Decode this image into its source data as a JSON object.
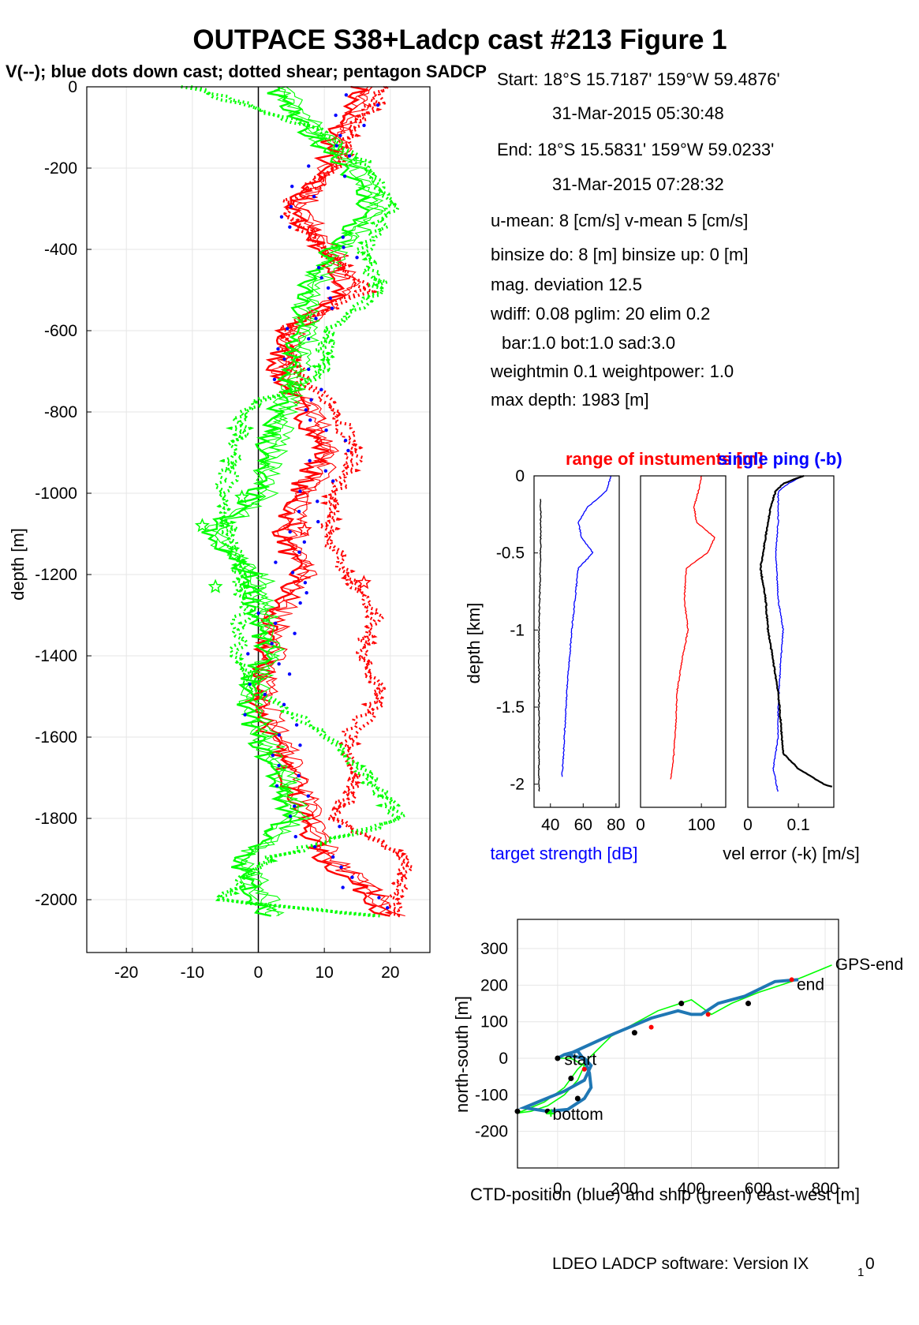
{
  "title": "OUTPACE S38+Ladcp cast #213  Figure 1",
  "subtitle": "V(--); blue dots down cast; dotted shear; pentagon SADCP",
  "info": {
    "start": "Start:  18°S 15.7187'      159°W 59.4876'",
    "start_time": "31-Mar-2015 05:30:48",
    "end": "End:   18°S 15.5831'      159°W 59.0233'",
    "end_time": "31-Mar-2015 07:28:32",
    "means": "u-mean:   8 [cm/s]    v-mean   5 [cm/s]",
    "binsize": "binsize do: 8 [m]  binsize up:  0 [m]",
    "magdev": "mag. deviation 12.5",
    "wdiff": "wdiff: 0.08  pglim: 20  elim 0.2",
    "bar": "bar:1.0 bot:1.0 sad:3.0",
    "weight": "weightmin 0.1  weightpower: 1.0",
    "maxdepth": "max depth: 1983 [m]"
  },
  "footer": "LDEO LADCP software: Version IX",
  "footer_sub": "1",
  "footer_end": "0",
  "colors": {
    "red": "#ff0000",
    "green": "#00ff00",
    "blue": "#0000ff",
    "black": "#000000",
    "grid": "#e6e6e6",
    "cyan_blue": "#1f77b4",
    "yellow": "#ffff00"
  },
  "chart_data": [
    {
      "id": "velocity",
      "type": "line",
      "ylabel": "depth [m]",
      "xlim": [
        -26,
        26
      ],
      "ylim": [
        -2130,
        0
      ],
      "xticks": [
        -20,
        -10,
        0,
        10,
        20
      ],
      "yticks": [
        0,
        -200,
        -400,
        -600,
        -800,
        -1000,
        -1200,
        -1400,
        -1600,
        -1800,
        -2000
      ],
      "series": [
        {
          "color": "#ff0000",
          "style": "solid",
          "z": [
            0,
            -100,
            -200,
            -300,
            -400,
            -500,
            -600,
            -700,
            -800,
            -900,
            -1000,
            -1100,
            -1200,
            -1300,
            -1400,
            -1500,
            -1600,
            -1700,
            -1800,
            -1900,
            -2000,
            -2040
          ],
          "v": [
            17,
            13,
            11,
            6,
            11,
            14,
            5,
            4,
            8,
            11,
            7,
            5,
            7,
            3,
            2,
            1,
            3,
            6,
            8,
            11,
            19,
            20
          ]
        },
        {
          "color": "#ff0000",
          "style": "dotted",
          "z": [
            0,
            -100,
            -200,
            -300,
            -400,
            -500,
            -600,
            -700,
            -800,
            -900,
            -1000,
            -1100,
            -1200,
            -1300,
            -1400,
            -1500,
            -1600,
            -1700,
            -1800,
            -1900,
            -2000,
            -2040
          ],
          "v": [
            20,
            15,
            12,
            4,
            10,
            17,
            4,
            6,
            12,
            15,
            12,
            11,
            14,
            18,
            16,
            19,
            14,
            15,
            12,
            23,
            21,
            21
          ]
        },
        {
          "color": "#00ff00",
          "style": "solid",
          "z": [
            0,
            -100,
            -200,
            -300,
            -400,
            -500,
            -600,
            -700,
            -800,
            -900,
            -1000,
            -1100,
            -1200,
            -1300,
            -1400,
            -1500,
            -1600,
            -1700,
            -1800,
            -1900,
            -2000,
            -2040
          ],
          "v": [
            3,
            8,
            15,
            18,
            12,
            8,
            7,
            6,
            4,
            2,
            1,
            -7,
            0,
            1,
            2,
            -1,
            1,
            4,
            6,
            -2,
            1,
            3
          ]
        },
        {
          "color": "#00ff00",
          "style": "dotted",
          "z": [
            0,
            -100,
            -200,
            -300,
            -400,
            -500,
            -600,
            -700,
            -800,
            -900,
            -1000,
            -1100,
            -1200,
            -1300,
            -1400,
            -1500,
            -1600,
            -1700,
            -1800,
            -1900,
            -2000,
            -2040
          ],
          "v": [
            -10,
            9,
            17,
            21,
            16,
            19,
            11,
            10,
            -2,
            -3,
            -5,
            -4,
            -2,
            -2,
            -3,
            1,
            11,
            17,
            22,
            2,
            -5,
            18
          ]
        }
      ],
      "sadcp_stars": [
        {
          "color": "#00ff00",
          "v": -6.5,
          "z": -1230
        },
        {
          "color": "#00ff00",
          "v": -8.5,
          "z": -1080
        },
        {
          "color": "#00ff00",
          "v": -2.5,
          "z": -1010
        },
        {
          "color": "#ff0000",
          "v": 16,
          "z": -1220
        },
        {
          "color": "#ff0000",
          "v": 7,
          "z": -1090
        }
      ]
    },
    {
      "id": "target_strength",
      "type": "line",
      "title": "range of instuments [m]",
      "ylabel": "depth [km]",
      "xlabel": "target strength [dB]",
      "xlim": [
        30,
        82
      ],
      "ylim": [
        -2.15,
        0
      ],
      "xticks": [
        40,
        60,
        80
      ],
      "yticks": [
        0,
        -0.5,
        -1,
        -1.5,
        -2
      ],
      "series": [
        {
          "color": "#0000ff",
          "z": [
            0,
            -0.1,
            -0.2,
            -0.3,
            -0.4,
            -0.5,
            -0.6,
            -0.8,
            -1,
            -1.4,
            -1.8,
            -1.96
          ],
          "v": [
            77,
            74,
            63,
            57,
            59,
            66,
            57,
            55,
            53,
            50,
            48,
            47
          ]
        },
        {
          "color": "#000000",
          "z": [
            -0.15,
            -0.5,
            -1,
            -1.5,
            -2.0,
            -2.05
          ],
          "v": [
            34,
            34,
            33,
            33,
            33,
            33
          ]
        }
      ]
    },
    {
      "id": "range",
      "type": "line",
      "xlim": [
        0,
        140
      ],
      "ylim": [
        -2.15,
        0
      ],
      "xticks": [
        0,
        100
      ],
      "series": [
        {
          "color": "#ff0000",
          "z": [
            0,
            -0.1,
            -0.2,
            -0.3,
            -0.4,
            -0.5,
            -0.6,
            -0.8,
            -1,
            -1.2,
            -1.4,
            -1.6,
            -1.8,
            -1.97
          ],
          "v": [
            100,
            95,
            88,
            92,
            122,
            110,
            75,
            72,
            78,
            68,
            60,
            58,
            55,
            50
          ]
        }
      ]
    },
    {
      "id": "vel_error",
      "type": "line",
      "title": "single ping (-b)",
      "xlabel": "vel error (-k) [m/s]",
      "xlim": [
        0,
        0.17
      ],
      "ylim": [
        -2.15,
        0
      ],
      "xticks": [
        0,
        0.1
      ],
      "series": [
        {
          "color": "#0000ff",
          "z": [
            0,
            -0.05,
            -0.1,
            -0.3,
            -0.5,
            -0.8,
            -1.0,
            -1.2,
            -1.5,
            -1.7,
            -1.9,
            -2.05
          ],
          "v": [
            0.11,
            0.08,
            0.06,
            0.06,
            0.055,
            0.06,
            0.07,
            0.065,
            0.06,
            0.06,
            0.05,
            0.06
          ]
        },
        {
          "color": "#000000",
          "z": [
            0,
            -0.05,
            -0.1,
            -0.2,
            -0.4,
            -0.6,
            -0.8,
            -1.0,
            -1.2,
            -1.4,
            -1.6,
            -1.8,
            -1.9,
            -2.0,
            -2.02
          ],
          "v": [
            0.11,
            0.07,
            0.055,
            0.045,
            0.035,
            0.025,
            0.035,
            0.04,
            0.05,
            0.06,
            0.065,
            0.07,
            0.1,
            0.15,
            0.17
          ]
        }
      ]
    },
    {
      "id": "position",
      "type": "line",
      "xlabel": "CTD-position (blue) and ship (green) east-west [m]",
      "ylabel": "north-south [m]",
      "xlim": [
        -120,
        840
      ],
      "ylim": [
        -300,
        380
      ],
      "xticks": [
        0,
        200,
        400,
        600,
        800
      ],
      "yticks": [
        300,
        200,
        100,
        0,
        -100,
        -200
      ],
      "ctd": {
        "color": "#1f77b4",
        "x": [
          0,
          20,
          60,
          80,
          95,
          100,
          80,
          30,
          -30,
          -100,
          -60,
          20,
          80,
          100,
          80,
          50,
          30,
          150,
          280,
          360,
          400,
          430,
          480,
          560,
          650,
          720
        ],
        "y": [
          0,
          10,
          20,
          -5,
          -40,
          -80,
          -110,
          -140,
          -145,
          -135,
          -120,
          -90,
          -60,
          -20,
          0,
          5,
          10,
          60,
          110,
          130,
          120,
          120,
          150,
          170,
          210,
          215
        ]
      },
      "ship": {
        "color": "#00ff00",
        "x": [
          0,
          40,
          80,
          60,
          20,
          -30,
          -80,
          -120,
          -40,
          20,
          60,
          160,
          300,
          400,
          460,
          520,
          600,
          700,
          820
        ],
        "y": [
          0,
          0,
          -20,
          -60,
          -100,
          -130,
          -145,
          -150,
          -120,
          -80,
          -30,
          60,
          130,
          160,
          120,
          150,
          180,
          210,
          255
        ]
      },
      "labels": {
        "start": "start",
        "bottom": "bottom",
        "end": "end",
        "gps_end": "GPS-end"
      }
    }
  ]
}
